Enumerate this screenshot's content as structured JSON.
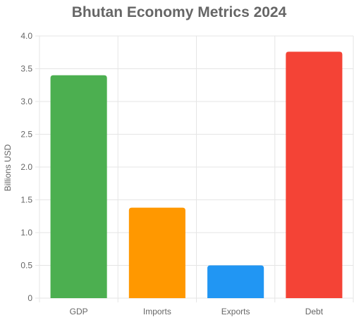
{
  "chart_data": {
    "type": "bar",
    "title": "Bhutan Economy Metrics 2024",
    "xlabel": "",
    "ylabel": "Billions USD",
    "categories": [
      "GDP",
      "Imports",
      "Exports",
      "Debt"
    ],
    "values": [
      3.4,
      1.38,
      0.5,
      3.76
    ],
    "colors": [
      "#4CAF50",
      "#FF9800",
      "#2196F3",
      "#F44336"
    ],
    "ylim": [
      0,
      4
    ],
    "yticks": [
      0,
      0.5,
      1,
      1.5,
      2,
      2.5,
      3,
      3.5,
      4
    ],
    "ytick_labels": [
      "0",
      "0.5",
      "1.0",
      "1.5",
      "2.0",
      "2.5",
      "3.0",
      "3.5",
      "4.0"
    ],
    "grid": true,
    "legend": "none"
  }
}
